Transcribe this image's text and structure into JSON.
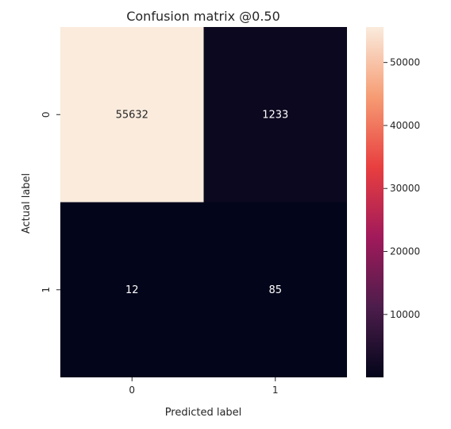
{
  "chart_data": {
    "type": "heatmap",
    "title": "Confusion matrix @0.50",
    "xlabel": "Predicted label",
    "ylabel": "Actual label",
    "x_categories": [
      "0",
      "1"
    ],
    "y_categories": [
      "0",
      "1"
    ],
    "values": [
      [
        55632,
        1233
      ],
      [
        12,
        85
      ]
    ],
    "cell_labels": [
      [
        "55632",
        "1233"
      ],
      [
        "12",
        "85"
      ]
    ],
    "colorbar": {
      "range": [
        12,
        55632
      ],
      "ticks": [
        10000,
        20000,
        30000,
        40000,
        50000
      ],
      "tick_labels": [
        "10000",
        "20000",
        "30000",
        "40000",
        "50000"
      ],
      "colormap": "rocket",
      "colors": [
        "#03051a",
        "#4c1d4b",
        "#a11a5b",
        "#e83f3f",
        "#f69c73",
        "#faebdd"
      ]
    },
    "grid": false
  }
}
